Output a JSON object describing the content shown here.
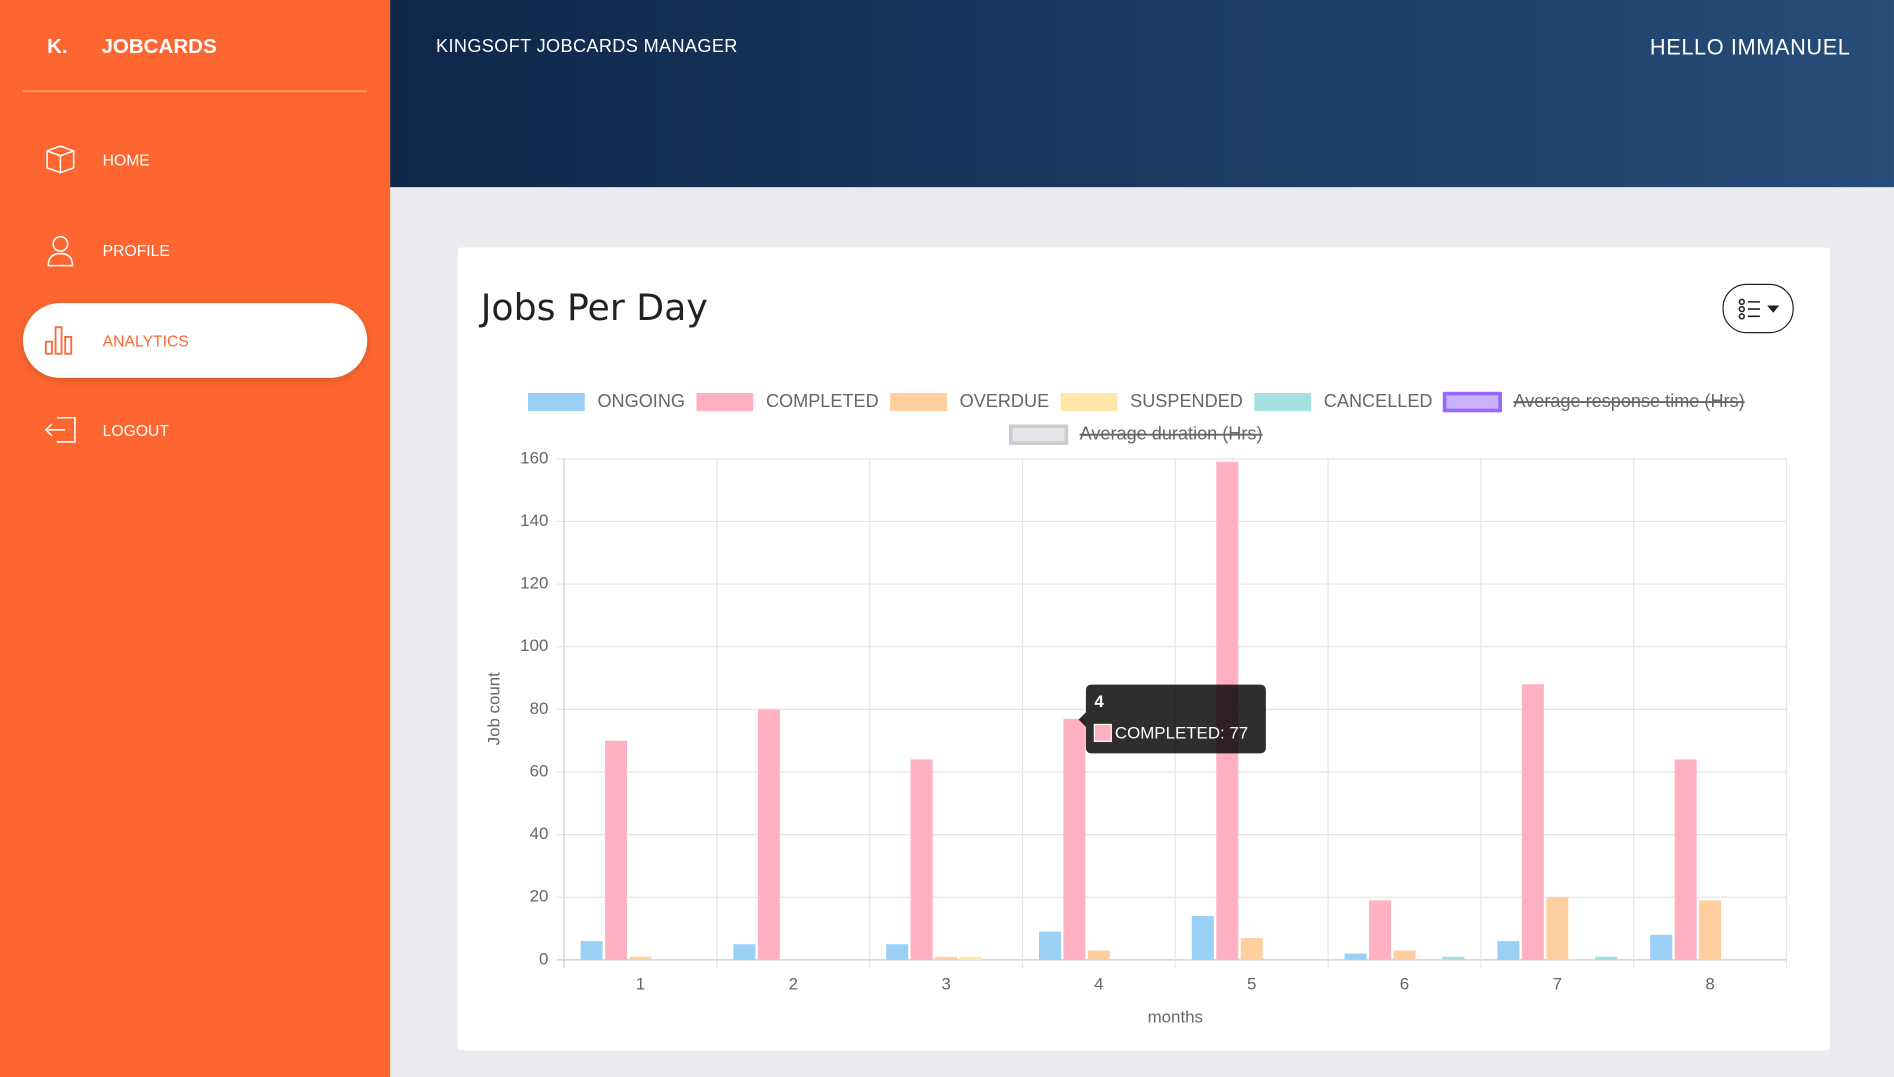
{
  "sidebar": {
    "brand_mark": "K.",
    "brand": "JOBCARDS",
    "nav": [
      "HOME",
      "PROFILE",
      "ANALYTICS",
      "LOGOUT"
    ]
  },
  "header": {
    "title": "KINGSOFT JOBCARDS MANAGER",
    "greeting": "HELLO IMMANUEL"
  },
  "chart_data": {
    "type": "bar",
    "title": "Jobs Per Day",
    "x_label": "months",
    "y_label": "Job count",
    "categories": [
      "1",
      "2",
      "3",
      "4",
      "5",
      "6",
      "7",
      "8"
    ],
    "series": [
      {
        "name": "ONGOING",
        "color": "#9ad0f5",
        "values": [
          6,
          5,
          5,
          9,
          14,
          2,
          6,
          8
        ]
      },
      {
        "name": "COMPLETED",
        "color": "#ffb1c1",
        "values": [
          70,
          80,
          64,
          77,
          159,
          19,
          88,
          64
        ]
      },
      {
        "name": "OVERDUE",
        "color": "#ffcf9f",
        "values": [
          1,
          0,
          1,
          3,
          7,
          3,
          20,
          19
        ]
      },
      {
        "name": "SUSPENDED",
        "color": "#ffe6aa",
        "values": [
          0,
          0,
          1,
          0,
          0,
          0,
          0,
          0
        ]
      },
      {
        "name": "CANCELLED",
        "color": "#a5dfdf",
        "values": [
          0,
          0,
          0,
          0,
          0,
          1,
          1,
          0
        ]
      },
      {
        "name": "Average response time (Hrs)",
        "color": "#c9b3ff",
        "hidden": true
      },
      {
        "name": "Average duration (Hrs)",
        "color": "#e4e5e7",
        "hidden": true
      }
    ],
    "ylim": [
      0,
      160
    ],
    "yticks": [
      0,
      20,
      40,
      60,
      80,
      100,
      120,
      140,
      160
    ],
    "grid": true,
    "legend": "top",
    "tooltip": {
      "title": "4",
      "label": "COMPLETED: 77"
    }
  }
}
